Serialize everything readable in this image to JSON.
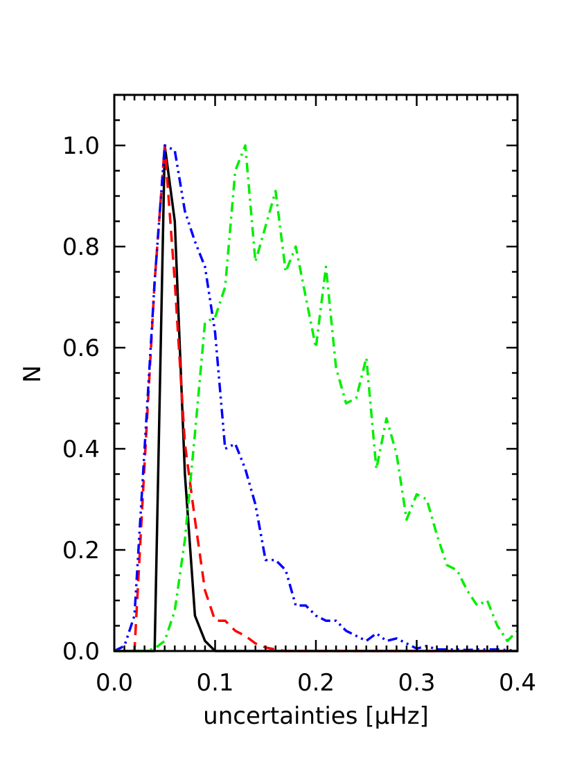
{
  "chart_data": {
    "type": "line",
    "xlabel": "uncertainties [μHz]",
    "ylabel": "N",
    "xlim": [
      0.0,
      0.4
    ],
    "ylim": [
      0.0,
      1.1
    ],
    "x_ticks": [
      "0.0",
      "0.1",
      "0.2",
      "0.3",
      "0.4"
    ],
    "y_ticks": [
      "0.0",
      "0.2",
      "0.4",
      "0.6",
      "0.8",
      "1.0"
    ],
    "x_tick_values": [
      0.0,
      0.1,
      0.2,
      0.3,
      0.4
    ],
    "y_tick_values": [
      0.0,
      0.2,
      0.4,
      0.6,
      0.8,
      1.0
    ],
    "grid": false,
    "legend": "none",
    "series": [
      {
        "color": "#000000",
        "style": "solid",
        "x": [
          0.0,
          0.03,
          0.04,
          0.05,
          0.06,
          0.07,
          0.08,
          0.09,
          0.1,
          0.11,
          0.2,
          0.4
        ],
        "y": [
          0.0,
          0.0,
          0.0,
          1.0,
          0.85,
          0.35,
          0.07,
          0.02,
          0.0,
          0.0,
          0.0,
          0.0
        ]
      },
      {
        "color": "#ff0000",
        "style": "dashed",
        "x": [
          0.0,
          0.01,
          0.02,
          0.03,
          0.04,
          0.05,
          0.06,
          0.07,
          0.08,
          0.09,
          0.1,
          0.11,
          0.12,
          0.13,
          0.14,
          0.15,
          0.16,
          0.17,
          0.18,
          0.2,
          0.25,
          0.3,
          0.35,
          0.4
        ],
        "y": [
          0.0,
          0.0,
          0.0,
          0.37,
          0.73,
          1.0,
          0.73,
          0.41,
          0.26,
          0.12,
          0.06,
          0.06,
          0.04,
          0.03,
          0.015,
          0.007,
          0.003,
          0.0,
          0.0,
          0.0,
          0.0,
          0.0,
          0.0,
          0.0
        ]
      },
      {
        "color": "#0000ff",
        "style": "dash-dot-dot",
        "x": [
          0.0,
          0.01,
          0.02,
          0.03,
          0.04,
          0.05,
          0.06,
          0.07,
          0.08,
          0.09,
          0.1,
          0.11,
          0.12,
          0.13,
          0.14,
          0.15,
          0.16,
          0.17,
          0.18,
          0.19,
          0.2,
          0.21,
          0.22,
          0.23,
          0.24,
          0.25,
          0.26,
          0.27,
          0.28,
          0.29,
          0.3,
          0.31,
          0.32,
          0.33,
          0.34,
          0.35,
          0.36,
          0.37,
          0.38,
          0.39,
          0.4
        ],
        "y": [
          0.0,
          0.01,
          0.07,
          0.4,
          0.73,
          1.0,
          0.99,
          0.87,
          0.81,
          0.76,
          0.63,
          0.4,
          0.41,
          0.36,
          0.29,
          0.18,
          0.18,
          0.16,
          0.09,
          0.09,
          0.07,
          0.06,
          0.06,
          0.04,
          0.03,
          0.02,
          0.035,
          0.02,
          0.025,
          0.015,
          0.005,
          0.01,
          0.003,
          0.003,
          0.003,
          0.002,
          0.003,
          0.003,
          0.003,
          0.002,
          0.0
        ]
      },
      {
        "color": "#00ee00",
        "style": "dash-dot",
        "x": [
          0.0,
          0.01,
          0.02,
          0.03,
          0.04,
          0.05,
          0.06,
          0.07,
          0.08,
          0.09,
          0.1,
          0.11,
          0.12,
          0.13,
          0.14,
          0.15,
          0.16,
          0.17,
          0.18,
          0.19,
          0.2,
          0.21,
          0.22,
          0.23,
          0.24,
          0.25,
          0.26,
          0.27,
          0.28,
          0.29,
          0.3,
          0.31,
          0.32,
          0.33,
          0.34,
          0.35,
          0.36,
          0.37,
          0.38,
          0.39,
          0.4
        ],
        "y": [
          0.0,
          0.0,
          0.0,
          0.0,
          0.005,
          0.02,
          0.08,
          0.22,
          0.43,
          0.65,
          0.66,
          0.72,
          0.95,
          1.0,
          0.77,
          0.84,
          0.91,
          0.75,
          0.8,
          0.7,
          0.6,
          0.76,
          0.56,
          0.49,
          0.5,
          0.58,
          0.36,
          0.46,
          0.39,
          0.26,
          0.31,
          0.3,
          0.23,
          0.17,
          0.16,
          0.12,
          0.09,
          0.1,
          0.05,
          0.02,
          0.04
        ]
      }
    ]
  }
}
